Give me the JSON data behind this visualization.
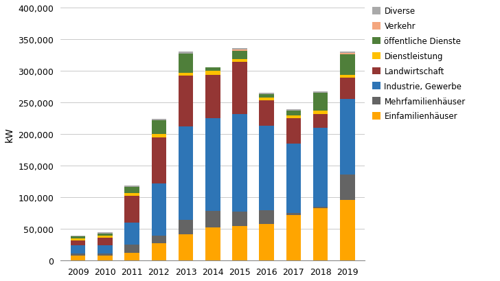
{
  "years": [
    "2009",
    "2010",
    "2011",
    "2012",
    "2013",
    "2014",
    "2015",
    "2016",
    "2017",
    "2018",
    "2019"
  ],
  "categories": [
    "Einfamilienhäuser",
    "Mehrfamilienhäuser",
    "Industrie, Gewerbe",
    "Landwirtschaft",
    "Dienstleistung",
    "öffentliche Dienste",
    "Verkehr",
    "Diverse"
  ],
  "colors": [
    "#FFA500",
    "#646464",
    "#2E75B6",
    "#943634",
    "#FFC000",
    "#4F7F3A",
    "#F4A67E",
    "#A9A9A9"
  ],
  "data": {
    "Einfamilienhäuser": [
      8000,
      8000,
      12000,
      27000,
      42000,
      53000,
      55000,
      58000,
      72000,
      83000,
      96000
    ],
    "Mehrfamilienhäuser": [
      3000,
      3000,
      13000,
      12000,
      22000,
      25000,
      22000,
      22000,
      3000,
      2000,
      40000
    ],
    "Industrie, Gewerbe": [
      13000,
      13000,
      35000,
      83000,
      148000,
      147000,
      155000,
      133000,
      110000,
      125000,
      120000
    ],
    "Landwirtschaft": [
      8000,
      12000,
      42000,
      73000,
      80000,
      68000,
      82000,
      40000,
      40000,
      22000,
      33000
    ],
    "Dienstleistung": [
      3000,
      3000,
      5000,
      5000,
      5000,
      7000,
      5000,
      5000,
      5000,
      5000,
      5000
    ],
    "öffentliche Dienste": [
      3000,
      4000,
      10000,
      22000,
      30000,
      5000,
      13000,
      5000,
      7000,
      28000,
      32000
    ],
    "Verkehr": [
      0,
      0,
      0,
      0,
      0,
      0,
      2000,
      0,
      0,
      0,
      2000
    ],
    "Diverse": [
      1000,
      2000,
      2000,
      2000,
      3000,
      0,
      2000,
      2000,
      2000,
      2000,
      2000
    ]
  },
  "ylabel": "kW",
  "ylim": [
    0,
    400000
  ],
  "yticks": [
    0,
    50000,
    100000,
    150000,
    200000,
    250000,
    300000,
    350000,
    400000
  ],
  "background_color": "#ffffff",
  "bar_width": 0.55,
  "figsize": [
    7.28,
    4.1
  ],
  "dpi": 100
}
